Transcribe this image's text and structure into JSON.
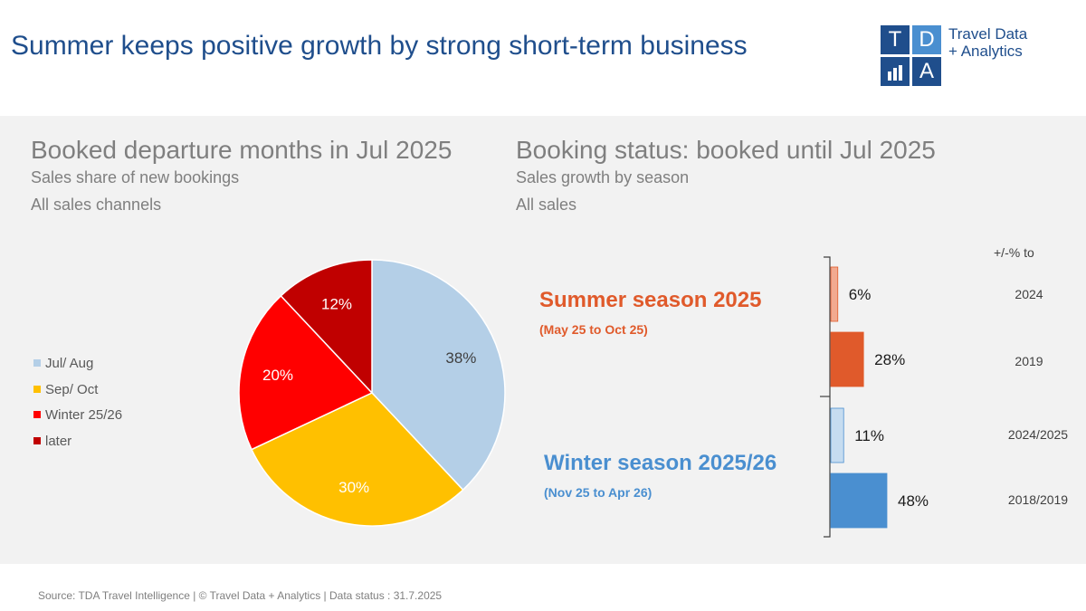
{
  "header": {
    "title": "Summer keeps positive growth by strong short-term business",
    "logo": {
      "letters": [
        "T",
        "D",
        "",
        "A"
      ],
      "text_line1": "Travel Data",
      "text_line2": "+ Analytics"
    }
  },
  "colors": {
    "title": "#1f4e8c",
    "summer": "#e05a2b",
    "winter": "#4a8fd0",
    "jul_aug": "#b4cfe7",
    "sep_oct": "#ffc000",
    "winter_2526": "#ff0000",
    "later": "#c00000"
  },
  "left": {
    "heading": "Booked departure months in Jul 2025",
    "sub1": "Sales share of new bookings",
    "sub2": "All sales channels"
  },
  "right": {
    "heading": "Booking status: booked until Jul 2025",
    "sub1": "Sales growth by season",
    "sub2": "All sales",
    "compare_header": "+/-% to"
  },
  "seasons": [
    {
      "name": "Summer season 2025",
      "range": "(May 25 to Oct 25)"
    },
    {
      "name": "Winter season 2025/26",
      "range": "(Nov 25 to Apr 26)"
    }
  ],
  "footer": "Source: TDA Travel Intelligence   |   © Travel Data + Analytics   | Data status : 31.7.2025",
  "chart_data": [
    {
      "type": "pie",
      "title": "Booked departure months in Jul 2025",
      "categories": [
        "Jul/ Aug",
        "Sep/ Oct",
        "Winter 25/26",
        "later"
      ],
      "values": [
        38,
        30,
        20,
        12
      ],
      "labels": [
        "38%",
        "30%",
        "20%",
        "12%"
      ],
      "unit": "%",
      "legend": "left"
    },
    {
      "type": "bar",
      "orientation": "horizontal",
      "title": "Booking status: booked until Jul 2025",
      "categories": [
        "2024",
        "2019",
        "2024/2025",
        "2018/2019"
      ],
      "groups": [
        "Summer season 2025",
        "Summer season 2025",
        "Winter season 2025/26",
        "Winter season 2025/26"
      ],
      "values": [
        6,
        28,
        11,
        48
      ],
      "labels": [
        "6%",
        "28%",
        "11%",
        "48%"
      ],
      "unit": "%"
    }
  ]
}
